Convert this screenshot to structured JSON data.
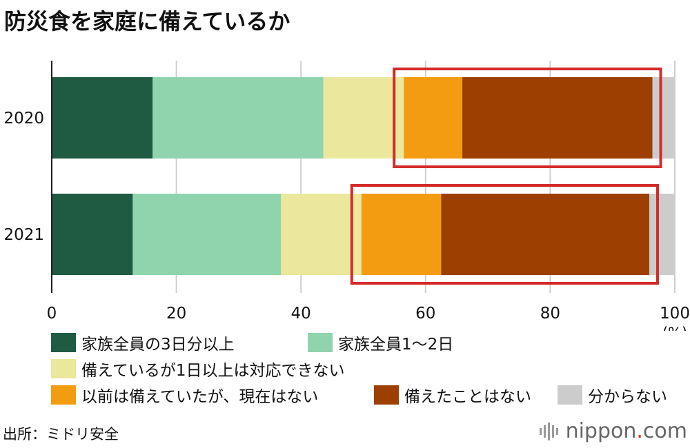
{
  "title": "防災食を家庭に備えているか",
  "source": "出所：ミドリ安全",
  "brand": {
    "name": "nippon",
    "dot": ".",
    "tld": "com"
  },
  "unit_label": "(%)",
  "colors": {
    "c1": "#1f5a43",
    "c2": "#8fd4ad",
    "c3": "#ebe79c",
    "c4": "#f39c12",
    "c5": "#9c3f00",
    "c6": "#cccccc",
    "highlight": "#d42a2a"
  },
  "legend": [
    {
      "label": "家族全員の3日分以上",
      "color_key": "c1"
    },
    {
      "label": "家族全員1～2日",
      "color_key": "c2"
    },
    {
      "label": "備えているが1日以上は対応できない",
      "color_key": "c3"
    },
    {
      "label": "以前は備えていたが、現在はない",
      "color_key": "c4"
    },
    {
      "label": "備えたことはない",
      "color_key": "c5"
    },
    {
      "label": "分からない",
      "color_key": "c6"
    }
  ],
  "chart_data": {
    "type": "bar",
    "orientation": "horizontal",
    "stacked": true,
    "categories": [
      "2020",
      "2021"
    ],
    "series": [
      {
        "name": "家族全員の3日分以上",
        "values": [
          16.2,
          13.0
        ]
      },
      {
        "name": "家族全員1～2日",
        "values": [
          27.4,
          23.8
        ]
      },
      {
        "name": "備えているが1日以上は対応できない",
        "values": [
          12.9,
          12.9
        ]
      },
      {
        "name": "以前は備えていたが、現在はない",
        "values": [
          9.4,
          12.8
        ]
      },
      {
        "name": "備えたことはない",
        "values": [
          30.5,
          33.4
        ]
      },
      {
        "name": "分からない",
        "values": [
          3.6,
          4.1
        ]
      }
    ],
    "xlim": [
      0,
      100
    ],
    "xticks": [
      0,
      20,
      40,
      60,
      80,
      100
    ],
    "grid": true,
    "highlight_series": [
      "以前は備えていたが、現在はない",
      "備えたことはない"
    ]
  }
}
